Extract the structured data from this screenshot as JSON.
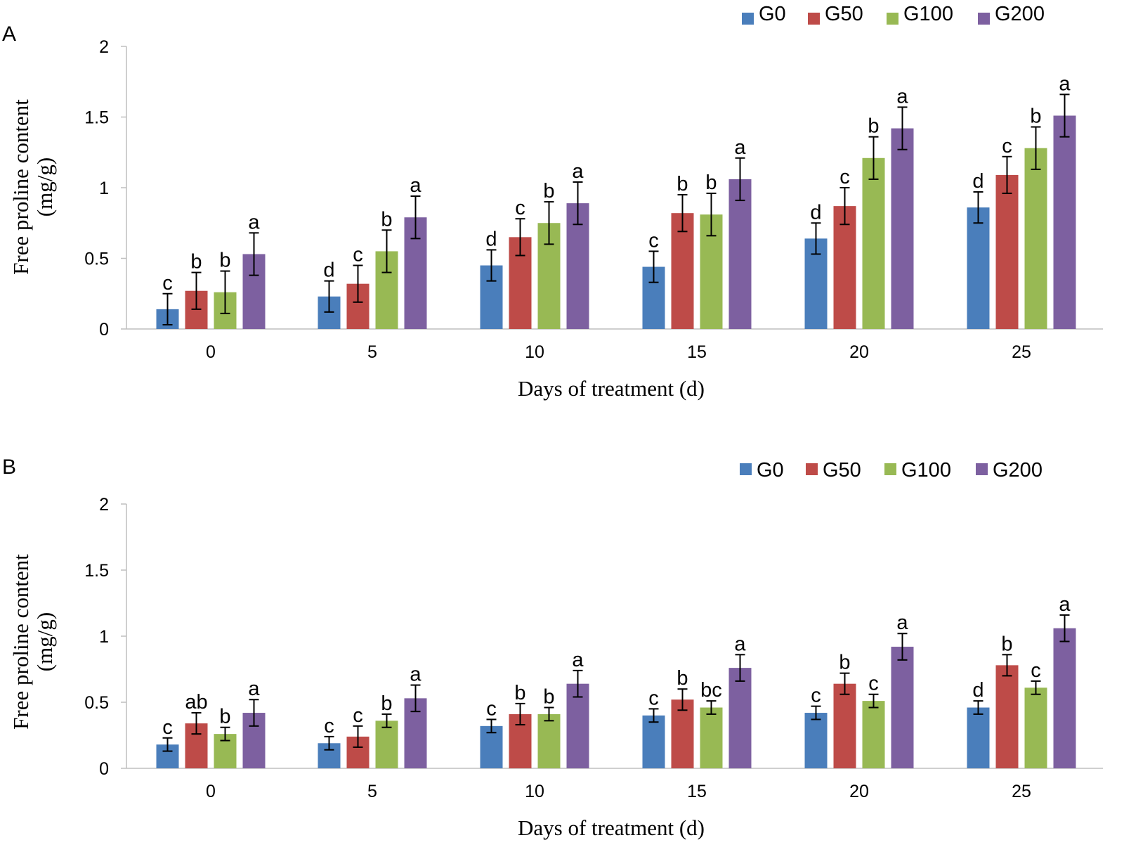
{
  "colors": {
    "G0": "#4a7ebb",
    "G50": "#be4b48",
    "G100": "#98b954",
    "G200": "#7d60a0",
    "axis": "#bfbfbf",
    "text": "#000000"
  },
  "chart_data": [
    {
      "type": "bar",
      "panel_label": "A",
      "categories": [
        "0",
        "5",
        "10",
        "15",
        "20",
        "25"
      ],
      "xlabel": "Days of treatment (d)",
      "ylabel_line1": "Free proline content",
      "ylabel_line2": "(mg/g)",
      "ylim": [
        0,
        2
      ],
      "yticks": [
        "0",
        "0.5",
        "1",
        "1.5",
        "2"
      ],
      "ytick_values": [
        0,
        0.5,
        1,
        1.5,
        2
      ],
      "legend_position": "top-right",
      "series": [
        {
          "name": "G0",
          "values": [
            0.14,
            0.23,
            0.45,
            0.44,
            0.64,
            0.86
          ],
          "errors": [
            0.11,
            0.11,
            0.11,
            0.11,
            0.11,
            0.11
          ],
          "labels": [
            "c",
            "d",
            "d",
            "c",
            "d",
            "d"
          ]
        },
        {
          "name": "G50",
          "values": [
            0.27,
            0.32,
            0.65,
            0.82,
            0.87,
            1.09
          ],
          "errors": [
            0.13,
            0.13,
            0.13,
            0.13,
            0.13,
            0.13
          ],
          "labels": [
            "b",
            "c",
            "c",
            "b",
            "c",
            "c"
          ]
        },
        {
          "name": "G100",
          "values": [
            0.26,
            0.55,
            0.75,
            0.81,
            1.21,
            1.28
          ],
          "errors": [
            0.15,
            0.15,
            0.15,
            0.15,
            0.15,
            0.15
          ],
          "labels": [
            "b",
            "b",
            "b",
            "b",
            "b",
            "b"
          ]
        },
        {
          "name": "G200",
          "values": [
            0.53,
            0.79,
            0.89,
            1.06,
            1.42,
            1.51
          ],
          "errors": [
            0.15,
            0.15,
            0.15,
            0.15,
            0.15,
            0.15
          ],
          "labels": [
            "a",
            "a",
            "a",
            "a",
            "a",
            "a"
          ]
        }
      ]
    },
    {
      "type": "bar",
      "panel_label": "B",
      "categories": [
        "0",
        "5",
        "10",
        "15",
        "20",
        "25"
      ],
      "xlabel": "Days of treatment (d)",
      "ylabel_line1": "Free proline content",
      "ylabel_line2": "(mg/g)",
      "ylim": [
        0,
        2
      ],
      "yticks": [
        "0",
        "0.5",
        "1",
        "1.5",
        "2"
      ],
      "ytick_values": [
        0,
        0.5,
        1,
        1.5,
        2
      ],
      "legend_position": "top-right",
      "series": [
        {
          "name": "G0",
          "values": [
            0.18,
            0.19,
            0.32,
            0.4,
            0.42,
            0.46
          ],
          "errors": [
            0.05,
            0.05,
            0.05,
            0.05,
            0.05,
            0.05
          ],
          "labels": [
            "c",
            "c",
            "c",
            "c",
            "c",
            "d"
          ]
        },
        {
          "name": "G50",
          "values": [
            0.34,
            0.24,
            0.41,
            0.52,
            0.64,
            0.78
          ],
          "errors": [
            0.08,
            0.08,
            0.08,
            0.08,
            0.08,
            0.08
          ],
          "labels": [
            "ab",
            "c",
            "b",
            "b",
            "b",
            "b"
          ]
        },
        {
          "name": "G100",
          "values": [
            0.26,
            0.36,
            0.41,
            0.46,
            0.51,
            0.61
          ],
          "errors": [
            0.05,
            0.05,
            0.05,
            0.05,
            0.05,
            0.05
          ],
          "labels": [
            "b",
            "b",
            "b",
            "bc",
            "c",
            "c"
          ]
        },
        {
          "name": "G200",
          "values": [
            0.42,
            0.53,
            0.64,
            0.76,
            0.92,
            1.06
          ],
          "errors": [
            0.1,
            0.1,
            0.1,
            0.1,
            0.1,
            0.1
          ],
          "labels": [
            "a",
            "a",
            "a",
            "a",
            "a",
            "a"
          ]
        }
      ]
    }
  ]
}
